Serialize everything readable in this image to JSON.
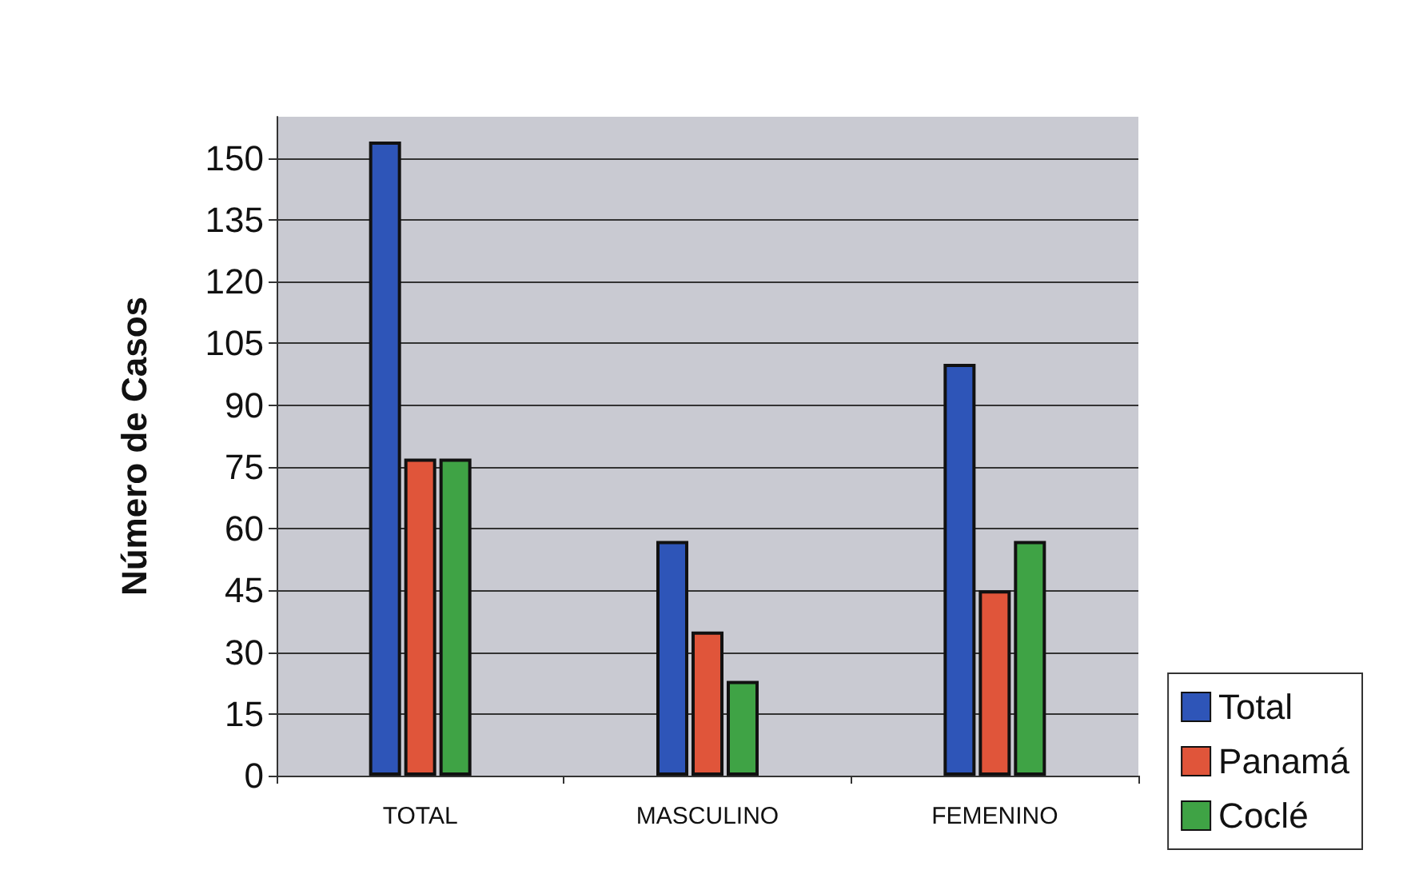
{
  "chart_data": {
    "type": "bar",
    "ylabel": "Número de Casos",
    "categories": [
      "TOTAL",
      "MASCULINO",
      "FEMENINO"
    ],
    "series": [
      {
        "name": "Total",
        "color": "#2e55b8",
        "values": [
          154,
          57,
          100
        ]
      },
      {
        "name": "Panamá",
        "color": "#e0553a",
        "values": [
          77,
          35,
          45
        ]
      },
      {
        "name": "Coclé",
        "color": "#3fa345",
        "values": [
          77,
          23,
          57
        ]
      }
    ],
    "ylim": [
      0,
      160
    ],
    "yticks": [
      0,
      15,
      30,
      45,
      60,
      75,
      90,
      105,
      120,
      135,
      150
    ],
    "grid": "y",
    "legend": "bottom right"
  }
}
